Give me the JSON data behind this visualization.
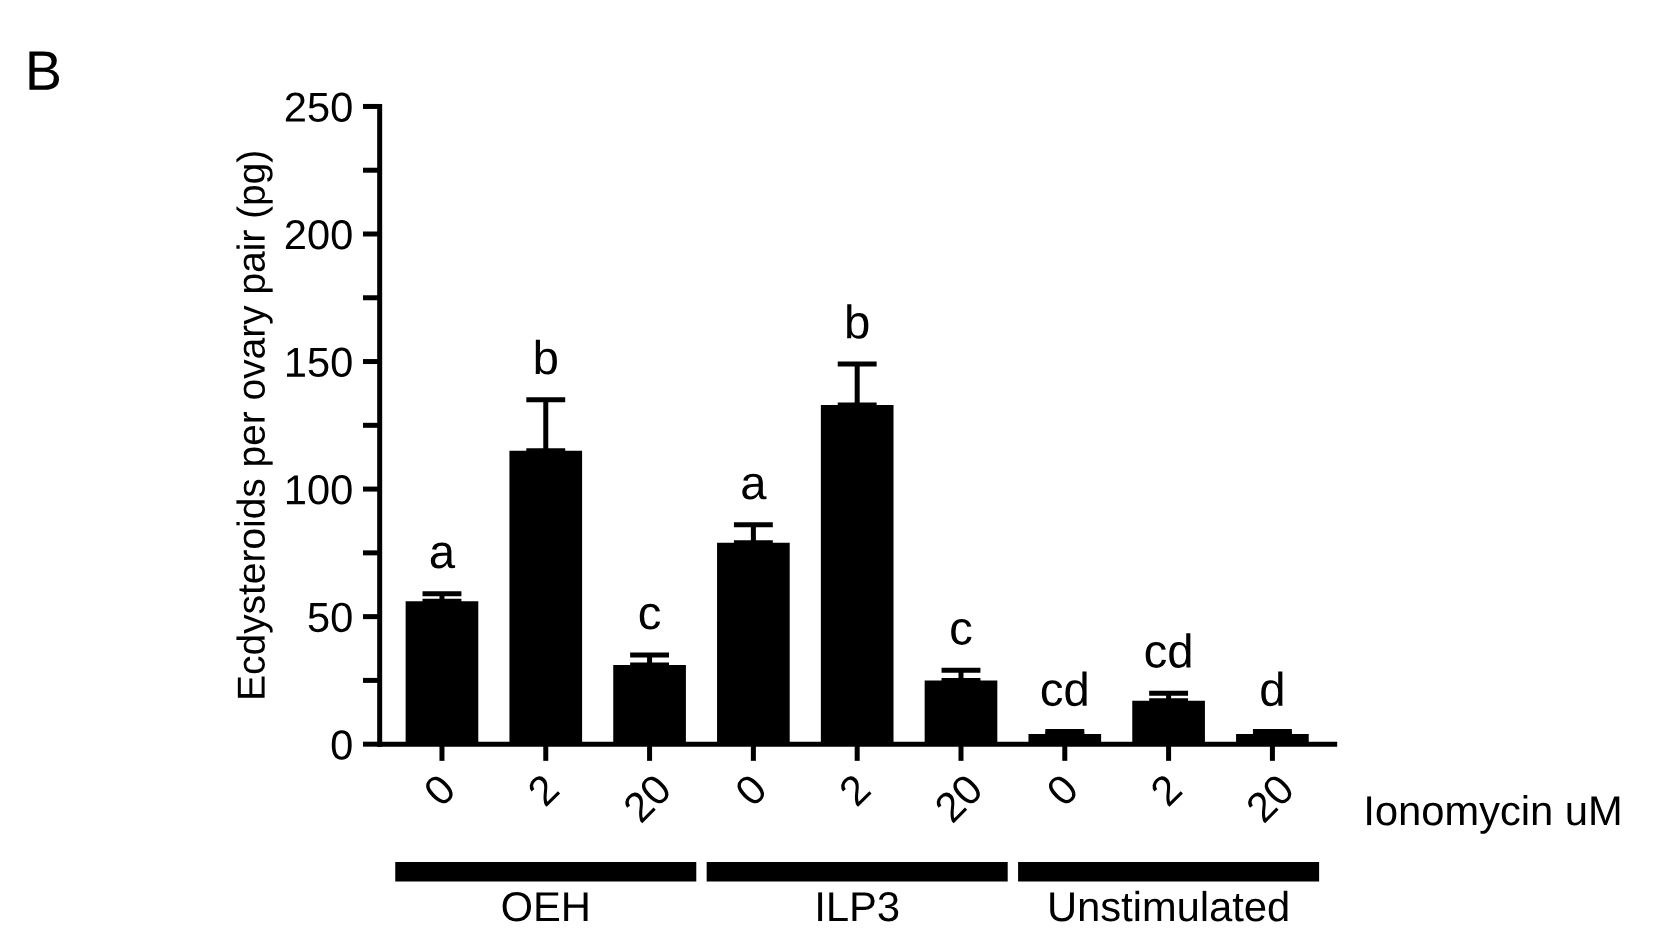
{
  "chart_data": {
    "type": "bar",
    "title": "B",
    "ylabel": "Ecdysteroids per ovary pair (pg)",
    "xlabel": "Ionomycin uM",
    "categories": [
      "0",
      "2",
      "20",
      "0",
      "2",
      "20",
      "0",
      "2",
      "20"
    ],
    "values": [
      56,
      115,
      31,
      79,
      133,
      25,
      4,
      17,
      4
    ],
    "errors": [
      3,
      20,
      4,
      7,
      16,
      4,
      1,
      3,
      1
    ],
    "colors": [
      "#000000",
      "#000000",
      "#000000",
      "#000000",
      "#000000",
      "#000000",
      "#000000",
      "#000000",
      "#000000"
    ],
    "ylim": [
      0,
      250
    ],
    "yticks": [
      0,
      {
        "value": 25,
        "label": null
      },
      50,
      {
        "value": 75,
        "label": null
      },
      100,
      {
        "value": 125,
        "label": null
      },
      150,
      {
        "value": 175,
        "label": null
      },
      200,
      {
        "value": 225,
        "label": null
      },
      250
    ],
    "grid": false,
    "legend": false,
    "annotations": [
      "a",
      "b",
      "c",
      "a",
      "b",
      "c",
      "cd",
      "cd",
      "d",
      "OEH",
      "ILP3",
      "Unstimulated"
    ]
  }
}
